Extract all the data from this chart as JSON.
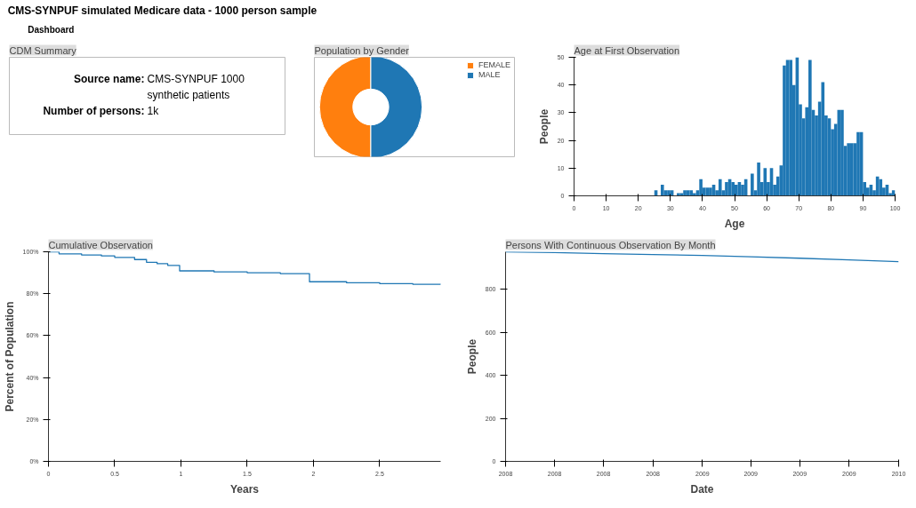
{
  "chart_data": [
    {
      "type": "other",
      "title": "CMS-SYNPUF simulated Medicare data - 1000 person sample",
      "subtitle": "Dashboard"
    },
    {
      "type": "other",
      "title": "CDM Summary",
      "annotations": [
        "Source name:",
        "CMS-SYNPUF 1000 synthetic patients",
        "Number of persons:",
        "1k"
      ]
    },
    {
      "type": "donut",
      "title": "Population by Gender",
      "categories": [
        "FEMALE",
        "MALE"
      ],
      "values": [
        50,
        50
      ],
      "colors": [
        "#ff7f0e",
        "#1f77b4"
      ],
      "legend": "right"
    },
    {
      "type": "histogram",
      "title": "Age at First Observation",
      "xlabel": "Age",
      "ylabel": "People",
      "color": "#1f77b4",
      "bins": [
        25,
        26,
        27,
        28,
        29,
        30,
        31,
        32,
        33,
        34,
        35,
        36,
        37,
        38,
        39,
        40,
        41,
        42,
        43,
        44,
        45,
        46,
        47,
        48,
        49,
        50,
        51,
        52,
        53,
        54,
        55,
        56,
        57,
        58,
        59,
        60,
        61,
        62,
        63,
        64,
        65,
        66,
        67,
        68,
        69,
        70,
        71,
        72,
        73,
        74,
        75,
        76,
        77,
        78,
        79,
        80,
        81,
        82,
        83,
        84,
        85,
        86,
        87,
        88,
        89,
        90,
        91,
        92,
        93,
        94,
        95,
        96,
        97,
        98,
        99,
        100
      ],
      "values": [
        2,
        0,
        4,
        2,
        2,
        2,
        0,
        1,
        1,
        2,
        2,
        2,
        1,
        2,
        6,
        3,
        3,
        3,
        4,
        2,
        6,
        2,
        5,
        6,
        5,
        4,
        5,
        4,
        6,
        0,
        8,
        2,
        12,
        5,
        10,
        5,
        10,
        4,
        7,
        11,
        47,
        49,
        49,
        40,
        50,
        33,
        28,
        32,
        49,
        31,
        29,
        34,
        41,
        29,
        28,
        24,
        26,
        31,
        31,
        18,
        19,
        19,
        19,
        23,
        23,
        5,
        3,
        4,
        2,
        7,
        6,
        3,
        4,
        1,
        2
      ],
      "xlim": [
        0,
        100
      ],
      "xticks": [
        0,
        10,
        20,
        30,
        40,
        50,
        60,
        70,
        80,
        90,
        100
      ],
      "ylim": [
        0,
        50
      ],
      "yticks": [
        0,
        10,
        20,
        30,
        40,
        50
      ],
      "grid": false
    },
    {
      "type": "step",
      "title": "Cumulative Observation",
      "xlabel": "Years",
      "ylabel": "Percent of Population",
      "color": "#1f77b4",
      "x": [
        0,
        0.08,
        0.25,
        0.4,
        0.5,
        0.65,
        0.74,
        0.82,
        0.9,
        0.99,
        1.25,
        1.5,
        1.75,
        1.97,
        2.25,
        2.5,
        2.75,
        2.96
      ],
      "values": [
        100,
        99,
        98.5,
        98,
        97.3,
        96.3,
        95,
        94.3,
        93.5,
        90.9,
        90.4,
        90,
        89.6,
        85.7,
        85.2,
        84.8,
        84.5,
        84.3
      ],
      "xlim": [
        0,
        2.96
      ],
      "xticks": [
        0,
        0.5,
        1,
        1.5,
        2,
        2.5
      ],
      "ylim": [
        0,
        100
      ],
      "yticks": [
        {
          "value": 0,
          "label": "0%"
        },
        {
          "value": 20,
          "label": "20%"
        },
        {
          "value": 40,
          "label": "40%"
        },
        {
          "value": 60,
          "label": "60%"
        },
        {
          "value": 80,
          "label": "80%"
        },
        {
          "value": 100,
          "label": "100%"
        }
      ],
      "grid": false
    },
    {
      "type": "line",
      "title": "Persons With Continuous Observation By Month",
      "xlabel": "Date",
      "ylabel": "People",
      "color": "#1f77b4",
      "x": [
        "2008-01",
        "2008-04",
        "2008-07",
        "2008-10",
        "2009-01",
        "2009-04",
        "2009-07",
        "2009-10",
        "2010-01"
      ],
      "values": [
        974,
        970,
        965,
        961,
        957,
        951,
        944,
        936,
        928
      ],
      "xlim": [
        "2008-01",
        "2010-01"
      ],
      "xticks": [
        {
          "value": "2008-01",
          "label": "2008"
        },
        {
          "value": "2008-04",
          "label": "2008"
        },
        {
          "value": "2008-07",
          "label": "2008"
        },
        {
          "value": "2008-10",
          "label": "2008"
        },
        {
          "value": "2009-01",
          "label": "2009"
        },
        {
          "value": "2009-04",
          "label": "2009"
        },
        {
          "value": "2009-07",
          "label": "2009"
        },
        {
          "value": "2009-10",
          "label": "2009"
        },
        {
          "value": "2010-01",
          "label": "2010"
        }
      ],
      "ylim": [
        0,
        974
      ],
      "yticks": [
        0,
        200,
        400,
        600,
        800
      ],
      "grid": false
    }
  ]
}
